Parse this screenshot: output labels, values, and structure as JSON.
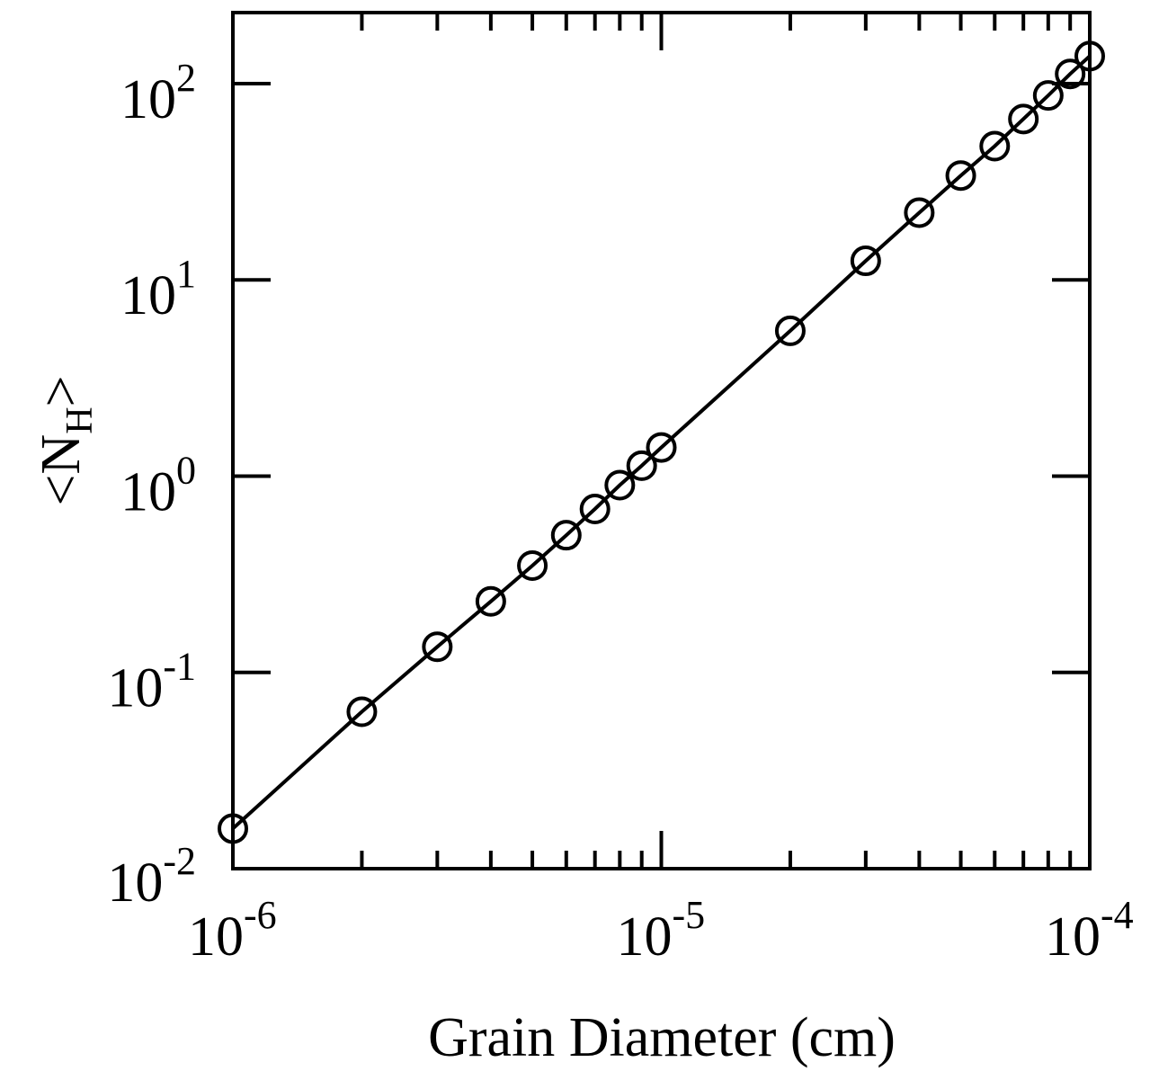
{
  "chart_data": {
    "type": "line",
    "xlabel": "Grain Diameter (cm)",
    "ylabel": "<N",
    "ylabel_sub": "H",
    "ylabel_close": ">",
    "xscale": "log",
    "yscale": "log",
    "xlim": [
      1e-06,
      0.0001
    ],
    "ylim": [
      0.01,
      230
    ],
    "grid": false,
    "x_tick_labels": [
      {
        "value": 1e-06,
        "base": "10",
        "exp": "-6"
      },
      {
        "value": 1e-05,
        "base": "10",
        "exp": "-5"
      },
      {
        "value": 0.0001,
        "base": "10",
        "exp": "-4"
      }
    ],
    "y_tick_labels": [
      {
        "value": 0.01,
        "base": "10",
        "exp": "-2"
      },
      {
        "value": 0.1,
        "base": "10",
        "exp": "-1"
      },
      {
        "value": 1,
        "base": "10",
        "exp": "0"
      },
      {
        "value": 10,
        "base": "10",
        "exp": "1"
      },
      {
        "value": 100,
        "base": "10",
        "exp": "2"
      }
    ],
    "series": [
      {
        "marker": "open-circle",
        "color": "#000000",
        "x": [
          1e-06,
          2e-06,
          3e-06,
          4e-06,
          5e-06,
          6e-06,
          7e-06,
          8e-06,
          9e-06,
          1e-05,
          2e-05,
          3e-05,
          4e-05,
          5e-05,
          6e-05,
          7e-05,
          8e-05,
          9e-05,
          0.0001
        ],
        "y": [
          0.016,
          0.063,
          0.135,
          0.23,
          0.35,
          0.5,
          0.68,
          0.9,
          1.13,
          1.4,
          5.5,
          12.5,
          22,
          34,
          48,
          66,
          87,
          112,
          138
        ]
      }
    ]
  }
}
